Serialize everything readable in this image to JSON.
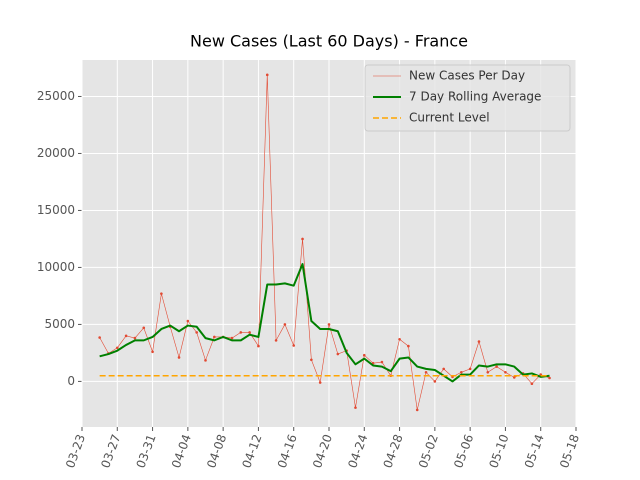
{
  "chart_data": {
    "type": "line",
    "title": "New Cases (Last 60 Days) - France",
    "x": [
      "03-25",
      "03-26",
      "03-27",
      "03-28",
      "03-29",
      "03-30",
      "03-31",
      "04-01",
      "04-02",
      "04-03",
      "04-04",
      "04-05",
      "04-06",
      "04-07",
      "04-08",
      "04-09",
      "04-10",
      "04-11",
      "04-12",
      "04-13",
      "04-14",
      "04-15",
      "04-16",
      "04-17",
      "04-18",
      "04-19",
      "04-20",
      "04-21",
      "04-22",
      "04-23",
      "04-24",
      "04-25",
      "04-26",
      "04-27",
      "04-28",
      "04-29",
      "04-30",
      "05-01",
      "05-02",
      "05-03",
      "05-04",
      "05-05",
      "05-06",
      "05-07",
      "05-08",
      "05-09",
      "05-10",
      "05-11",
      "05-12",
      "05-13",
      "05-14",
      "05-15"
    ],
    "series": [
      {
        "name": "New Cases Per Day",
        "color": "#e24a33",
        "style": "thin-dots",
        "values": [
          3850,
          2450,
          2950,
          4000,
          3800,
          4700,
          2600,
          7700,
          4800,
          2100,
          5300,
          4300,
          1850,
          3900,
          3900,
          3800,
          4300,
          4300,
          3100,
          26900,
          3600,
          5000,
          3150,
          12500,
          1900,
          -100,
          5000,
          2400,
          2700,
          -2300,
          2300,
          1600,
          1700,
          500,
          3700,
          3100,
          -2500,
          800,
          0,
          1100,
          400,
          800,
          1100,
          3500,
          800,
          1300,
          800,
          350,
          700,
          -200,
          600,
          300
        ]
      },
      {
        "name": "7 Day Rolling Average",
        "color": "#008000",
        "style": "thick",
        "values": [
          2200,
          2400,
          2700,
          3200,
          3600,
          3600,
          3900,
          4600,
          4900,
          4400,
          4900,
          4800,
          3800,
          3600,
          3900,
          3600,
          3600,
          4100,
          3900,
          8500,
          8500,
          8600,
          8400,
          10300,
          5300,
          4600,
          4600,
          4400,
          2500,
          1500,
          2000,
          1400,
          1300,
          900,
          2000,
          2100,
          1300,
          1100,
          1000,
          500,
          0,
          600,
          600,
          1400,
          1300,
          1500,
          1500,
          1300,
          600,
          700,
          400,
          500
        ]
      },
      {
        "name": "Current Level",
        "color": "#ffa500",
        "style": "dashed",
        "value": 500
      }
    ],
    "xlim": [
      "03-23",
      "05-18"
    ],
    "xticks": [
      "03-23",
      "03-27",
      "03-31",
      "04-04",
      "04-08",
      "04-12",
      "04-16",
      "04-20",
      "04-24",
      "04-28",
      "05-02",
      "05-06",
      "05-10",
      "05-14",
      "05-18"
    ],
    "ylim": [
      -4000,
      28200
    ],
    "yticks": [
      0,
      5000,
      10000,
      15000,
      20000,
      25000
    ],
    "grid": true,
    "legend": "upper right"
  }
}
